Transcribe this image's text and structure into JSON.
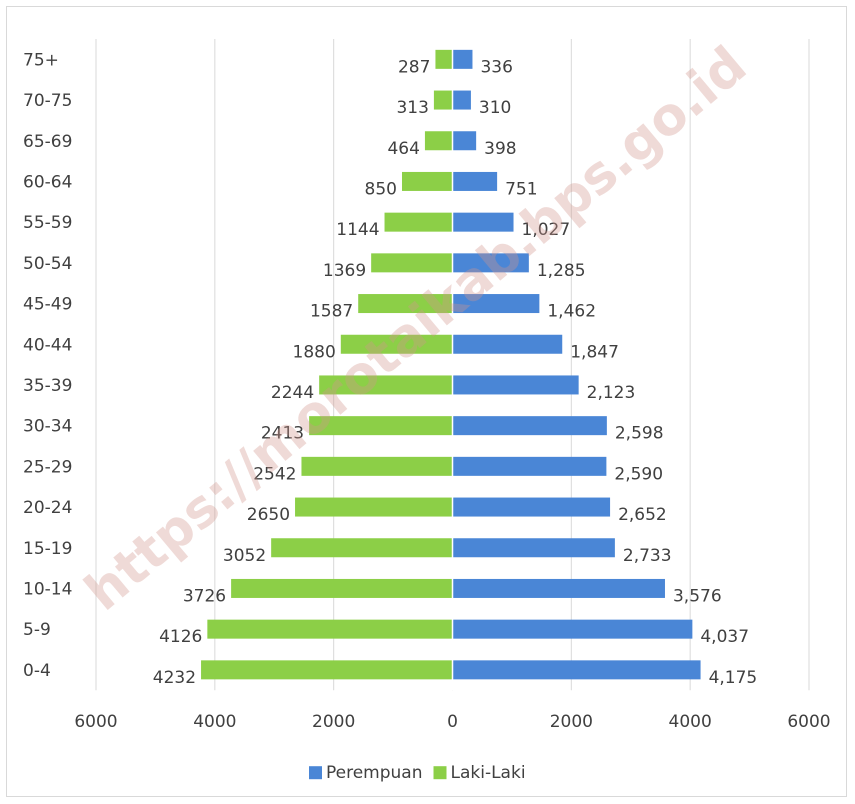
{
  "chart_data": {
    "type": "bar",
    "orientation": "horizontal",
    "layout": "population-pyramid",
    "categories": [
      "0-4",
      "5-9",
      "10-14",
      "15-19",
      "20-24",
      "25-29",
      "30-34",
      "35-39",
      "40-44",
      "45-49",
      "50-54",
      "55-59",
      "60-64",
      "65-69",
      "70-75",
      "75+"
    ],
    "series": [
      {
        "name": "Perempuan",
        "color": "#4a86d6",
        "side": "right",
        "values": [
          4175,
          4037,
          3576,
          2733,
          2652,
          2590,
          2598,
          2123,
          1847,
          1462,
          1285,
          1027,
          751,
          398,
          310,
          336
        ],
        "labels": [
          "4,175",
          "4,037",
          "3,576",
          "2,733",
          "2,652",
          "2,590",
          "2,598",
          "2,123",
          "1,847",
          "1,462",
          "1,285",
          "1,027",
          "751",
          "398",
          "310",
          "336"
        ]
      },
      {
        "name": "Laki-Laki",
        "color": "#8ccf47",
        "side": "left",
        "values": [
          4232,
          4126,
          3726,
          3052,
          2650,
          2542,
          2413,
          2244,
          1880,
          1587,
          1369,
          1144,
          850,
          464,
          313,
          287
        ],
        "labels": [
          "4232",
          "4126",
          "3726",
          "3052",
          "2650",
          "2542",
          "2413",
          "2244",
          "1880",
          "1587",
          "1369",
          "1144",
          "850",
          "464",
          "313",
          "287"
        ]
      }
    ],
    "xlim": [
      -6000,
      6000
    ],
    "xticks": [
      -6000,
      -4000,
      -2000,
      0,
      2000,
      4000,
      6000
    ],
    "xtick_labels": [
      "6000",
      "4000",
      "2000",
      "0",
      "2000",
      "4000",
      "6000"
    ],
    "grid": "vertical",
    "legend": "bottom-center",
    "watermark": "https://morotaikab.bps.go.id"
  }
}
